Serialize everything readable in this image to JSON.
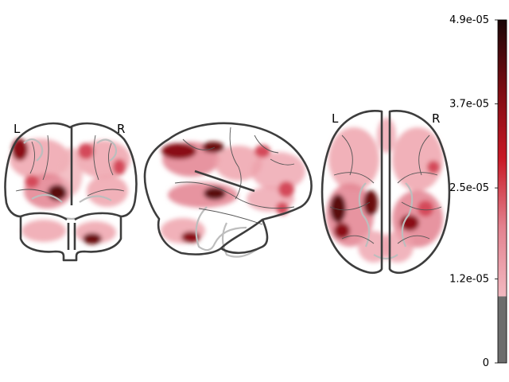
{
  "views": {
    "coronal": {
      "left": "L",
      "right": "R"
    },
    "axial": {
      "left": "L",
      "right": "R"
    }
  },
  "colorbar": {
    "tick_labels": [
      "4.9e-05",
      "3.7e-05",
      "2.5e-05",
      "1.2e-05",
      "0"
    ],
    "tick_values": [
      4.9e-05,
      3.7e-05,
      2.5e-05,
      1.2e-05,
      0
    ],
    "min": 0,
    "max": 4.9e-05,
    "threshold": 9.5e-06,
    "below_threshold_color": "#6d6d6d",
    "gradient_colors": [
      "#f2b8c0",
      "#e3828f",
      "#c81825",
      "#7a0c12",
      "#1a0607"
    ]
  },
  "colors": {
    "outline": "#3d3d3d",
    "light_blob": "#eea3ad",
    "mid_blob": "#d44a5a",
    "dark_blob": "#5a0a0e"
  }
}
